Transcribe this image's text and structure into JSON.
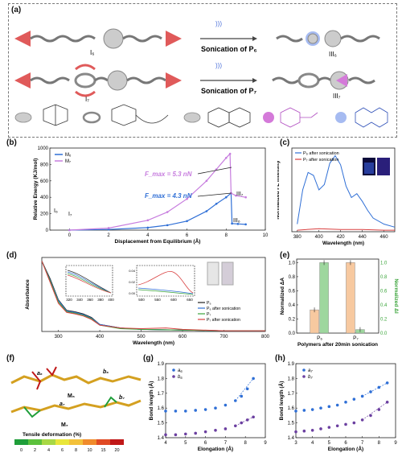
{
  "panels": {
    "a": "(a)",
    "b": "(b)",
    "c": "(c)",
    "d": "(d)",
    "e": "(e)",
    "f": "(f)",
    "g": "(g)",
    "h": "(h)"
  },
  "panel_a": {
    "rows": [
      {
        "left": "I₆",
        "arrow": "Sonication of P₆",
        "right": "III₆"
      },
      {
        "left": "I₇",
        "arrow": "Sonication of P₇",
        "right": "III₇"
      }
    ]
  },
  "chart_b": {
    "type": "line",
    "title": "",
    "xlabel": "Displacement from Equilibrium (Å)",
    "ylabel": "Relative Energy (KJ/mol)",
    "xlim": [
      -1,
      10
    ],
    "ylim": [
      0,
      1000
    ],
    "xticks": [
      "0",
      "2",
      "4",
      "6",
      "8",
      "10"
    ],
    "yticks": [
      "0",
      "200",
      "400",
      "600",
      "800",
      "1000"
    ],
    "legend": [
      "M₆",
      "M₇"
    ],
    "annotations": [
      "F_max = 5.3 nN",
      "F_max = 4.3 nN",
      "I₆",
      "I₇",
      "III₇",
      "III₆"
    ],
    "series": [
      {
        "name": "M₆",
        "color": "#2f6fd6",
        "x": [
          0,
          2,
          4,
          5,
          6,
          7,
          7.5,
          8,
          8.25,
          8.3,
          8.6,
          9
        ],
        "y": [
          0,
          8,
          30,
          60,
          110,
          230,
          320,
          400,
          450,
          80,
          75,
          70
        ]
      },
      {
        "name": "M₇",
        "color": "#c77dde",
        "x": [
          0,
          2,
          4,
          5,
          6,
          7,
          7.5,
          8,
          8.2,
          8.25,
          8.5,
          9
        ],
        "y": [
          0,
          25,
          120,
          220,
          380,
          600,
          740,
          880,
          930,
          450,
          420,
          400
        ]
      }
    ]
  },
  "chart_c": {
    "type": "line",
    "xlabel": "Wavelength (nm)",
    "ylabel": "Normalized FL intensity",
    "xticks": [
      "380",
      "400",
      "420",
      "440",
      "460"
    ],
    "legend": [
      "P₆ after sonication",
      "P₇ after sonication"
    ],
    "series": [
      {
        "name": "P₆ after sonication",
        "color": "#2f6fd6",
        "x": [
          380,
          385,
          390,
          395,
          400,
          405,
          410,
          415,
          420,
          425,
          430,
          435,
          440,
          445,
          450,
          460,
          470
        ],
        "y": [
          0.1,
          0.55,
          0.78,
          0.74,
          0.55,
          0.62,
          0.9,
          1.0,
          0.88,
          0.6,
          0.45,
          0.5,
          0.4,
          0.28,
          0.18,
          0.1,
          0.06
        ]
      },
      {
        "name": "P₇ after sonication",
        "color": "#d94040",
        "x": [
          380,
          400,
          420,
          440,
          460,
          470
        ],
        "y": [
          0.02,
          0.04,
          0.03,
          0.03,
          0.02,
          0.02
        ]
      }
    ]
  },
  "chart_d": {
    "type": "line",
    "xlabel": "Wavelength (nm)",
    "ylabel": "Absorbance",
    "xticks": [
      "300",
      "400",
      "500",
      "600",
      "700",
      "800"
    ],
    "inset1_xticks": [
      "320",
      "340",
      "360",
      "380",
      "400"
    ],
    "inset2_xticks": [
      "500",
      "550",
      "600",
      "650"
    ],
    "inset2_yticks": [
      "0.00",
      "0.02",
      "0.04"
    ],
    "legend": [
      "P₆",
      "P₆ after sonication",
      "P₇",
      "P₇ after sonication"
    ],
    "series": [
      {
        "name": "P₆",
        "color": "#222222",
        "x": [
          260,
          280,
          300,
          320,
          340,
          360,
          380,
          400,
          450,
          500,
          600,
          700,
          800
        ],
        "y": [
          1.0,
          0.75,
          0.45,
          0.3,
          0.28,
          0.25,
          0.2,
          0.1,
          0.05,
          0.03,
          0.02,
          0.01,
          0.01
        ]
      },
      {
        "name": "P₆ after sonication",
        "color": "#2f6fd6",
        "x": [
          260,
          280,
          300,
          320,
          340,
          360,
          380,
          400,
          450,
          500,
          600,
          700,
          800
        ],
        "y": [
          1.0,
          0.73,
          0.44,
          0.29,
          0.27,
          0.24,
          0.19,
          0.1,
          0.05,
          0.03,
          0.02,
          0.01,
          0.01
        ]
      },
      {
        "name": "P₇",
        "color": "#3aa43a",
        "x": [
          260,
          280,
          300,
          320,
          340,
          360,
          380,
          400,
          450,
          500,
          600,
          700,
          800
        ],
        "y": [
          1.0,
          0.72,
          0.42,
          0.28,
          0.26,
          0.23,
          0.18,
          0.09,
          0.04,
          0.03,
          0.02,
          0.01,
          0.01
        ]
      },
      {
        "name": "P₇ after sonication",
        "color": "#d94040",
        "x": [
          260,
          280,
          300,
          320,
          340,
          360,
          380,
          400,
          450,
          500,
          560,
          600,
          700,
          800
        ],
        "y": [
          1.0,
          0.7,
          0.4,
          0.27,
          0.25,
          0.22,
          0.17,
          0.09,
          0.05,
          0.04,
          0.05,
          0.03,
          0.01,
          0.01
        ]
      }
    ]
  },
  "chart_e": {
    "type": "bar",
    "xlabel": "Polymers after 20min sonication",
    "ylabel_left": "Normalized ΔA",
    "ylabel_right": "Normalized ΔI",
    "categories": [
      "P₆",
      "P₇"
    ],
    "yticks": [
      "0.0",
      "0.2",
      "0.4",
      "0.6",
      "0.8",
      "1.0"
    ],
    "series": [
      {
        "name": "Normalized ΔA",
        "color": "#f7c9a0",
        "values": [
          0.33,
          1.0
        ]
      },
      {
        "name": "Normalized ΔI",
        "color": "#9ed79e",
        "values": [
          1.0,
          0.05
        ]
      }
    ]
  },
  "panel_f": {
    "molecules": [
      "M₆",
      "M₇"
    ],
    "bonds": [
      "a₆",
      "b₆",
      "a₇",
      "b₇"
    ],
    "scale_title": "Tensile deformation (%)",
    "scale_ticks": [
      "0",
      "2",
      "4",
      "6",
      "8",
      "10",
      "15",
      "20"
    ],
    "scale_colors": [
      "#1f9e3a",
      "#5cc13c",
      "#a8d845",
      "#e9e63b",
      "#f3c13a",
      "#f08b2c",
      "#e04a24",
      "#c01818"
    ]
  },
  "chart_g": {
    "type": "scatter",
    "xlabel": "Elongation (Å)",
    "ylabel": "Bond length (Å)",
    "xticks": [
      "4",
      "5",
      "6",
      "7",
      "8",
      "9"
    ],
    "yticks": [
      "1.4",
      "1.5",
      "1.6",
      "1.7",
      "1.8",
      "1.9"
    ],
    "legend": [
      "a₆",
      "b₆"
    ],
    "series": [
      {
        "name": "a₆",
        "color": "#2f6fd6",
        "x": [
          4,
          4.5,
          5,
          5.5,
          6,
          6.5,
          7,
          7.5,
          7.8,
          8.1,
          8.4
        ],
        "y": [
          1.58,
          1.58,
          1.58,
          1.585,
          1.59,
          1.6,
          1.62,
          1.65,
          1.68,
          1.73,
          1.8
        ]
      },
      {
        "name": "b₆",
        "color": "#6b3fa0",
        "x": [
          4,
          4.5,
          5,
          5.5,
          6,
          6.5,
          7,
          7.5,
          7.8,
          8.1,
          8.4
        ],
        "y": [
          1.42,
          1.42,
          1.425,
          1.43,
          1.44,
          1.45,
          1.46,
          1.48,
          1.5,
          1.52,
          1.54
        ]
      }
    ]
  },
  "chart_h": {
    "type": "scatter",
    "xlabel": "Elongation (Å)",
    "ylabel": "Bond length (Å)",
    "xticks": [
      "3",
      "4",
      "5",
      "6",
      "7",
      "8",
      "9"
    ],
    "yticks": [
      "1.4",
      "1.5",
      "1.6",
      "1.7",
      "1.8",
      "1.9"
    ],
    "legend": [
      "a₇",
      "b₇"
    ],
    "series": [
      {
        "name": "a₇",
        "color": "#2f6fd6",
        "x": [
          3,
          3.5,
          4,
          4.5,
          5,
          5.5,
          6,
          6.5,
          7,
          7.5,
          8,
          8.5
        ],
        "y": [
          1.58,
          1.585,
          1.59,
          1.6,
          1.61,
          1.62,
          1.64,
          1.66,
          1.68,
          1.71,
          1.74,
          1.77
        ]
      },
      {
        "name": "b₇",
        "color": "#6b3fa0",
        "x": [
          3,
          3.5,
          4,
          4.5,
          5,
          5.5,
          6,
          6.5,
          7,
          7.5,
          8,
          8.5
        ],
        "y": [
          1.44,
          1.445,
          1.45,
          1.46,
          1.47,
          1.48,
          1.49,
          1.5,
          1.52,
          1.55,
          1.59,
          1.64
        ]
      }
    ]
  }
}
